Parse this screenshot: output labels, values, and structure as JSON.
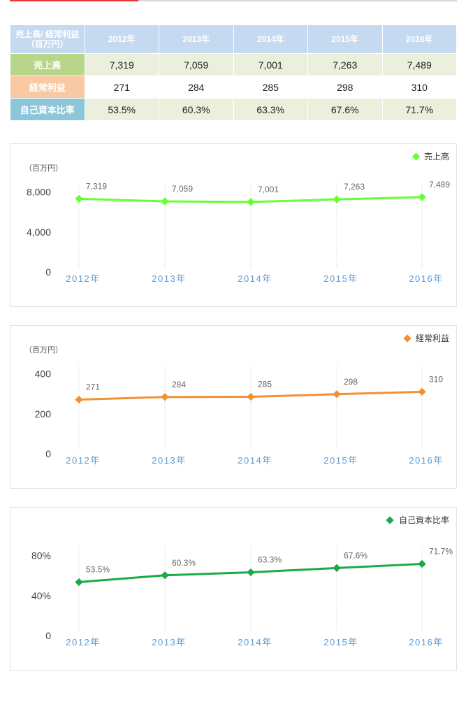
{
  "colors": {
    "sales": "#66ff33",
    "profit": "#f39034",
    "equity": "#1aaa4a",
    "header_bg": "#c5d9f0",
    "sales_row": "#b8d58a",
    "profit_row": "#f8c9a2",
    "equity_row": "#8cc6d8",
    "year_label": "#5b9bd5",
    "accent": "#e8353a"
  },
  "table": {
    "header_label": "売上高/ 経常利益\n（百万円）",
    "years": [
      "2012年",
      "2013年",
      "2014年",
      "2015年",
      "2016年"
    ],
    "rows": [
      {
        "label": "売上高",
        "values": [
          "7,319",
          "7,059",
          "7,001",
          "7,263",
          "7,489"
        ]
      },
      {
        "label": "経常利益",
        "values": [
          "271",
          "284",
          "285",
          "298",
          "310"
        ]
      },
      {
        "label": "自己資本比率",
        "values": [
          "53.5%",
          "60.3%",
          "63.3%",
          "67.6%",
          "71.7%"
        ]
      }
    ]
  },
  "chart_data": [
    {
      "type": "line",
      "unit_label": "（百万円）",
      "categories": [
        "2012年",
        "2013年",
        "2014年",
        "2015年",
        "2016年"
      ],
      "series": [
        {
          "name": "売上高",
          "values": [
            7319,
            7059,
            7001,
            7263,
            7489
          ]
        }
      ],
      "data_labels": [
        "7,319",
        "7,059",
        "7,001",
        "7,263",
        "7,489"
      ],
      "yticks": [
        "0",
        "4,000",
        "8,000"
      ],
      "ylim": [
        0,
        10000
      ],
      "legend": "top-right"
    },
    {
      "type": "line",
      "unit_label": "（百万円）",
      "categories": [
        "2012年",
        "2013年",
        "2014年",
        "2015年",
        "2016年"
      ],
      "series": [
        {
          "name": "経常利益",
          "values": [
            271,
            284,
            285,
            298,
            310
          ]
        }
      ],
      "data_labels": [
        "271",
        "284",
        "285",
        "298",
        "310"
      ],
      "yticks": [
        "0",
        "200",
        "400"
      ],
      "ylim": [
        0,
        500
      ],
      "legend": "top-right"
    },
    {
      "type": "line",
      "unit_label": "",
      "categories": [
        "2012年",
        "2013年",
        "2014年",
        "2015年",
        "2016年"
      ],
      "series": [
        {
          "name": "自己資本比率",
          "values": [
            53.5,
            60.3,
            63.3,
            67.6,
            71.7
          ]
        }
      ],
      "data_labels": [
        "53.5%",
        "60.3%",
        "63.3%",
        "67.6%",
        "71.7%"
      ],
      "yticks": [
        "0",
        "40%",
        "80%"
      ],
      "ylim": [
        0,
        100
      ],
      "legend": "top-right"
    }
  ]
}
